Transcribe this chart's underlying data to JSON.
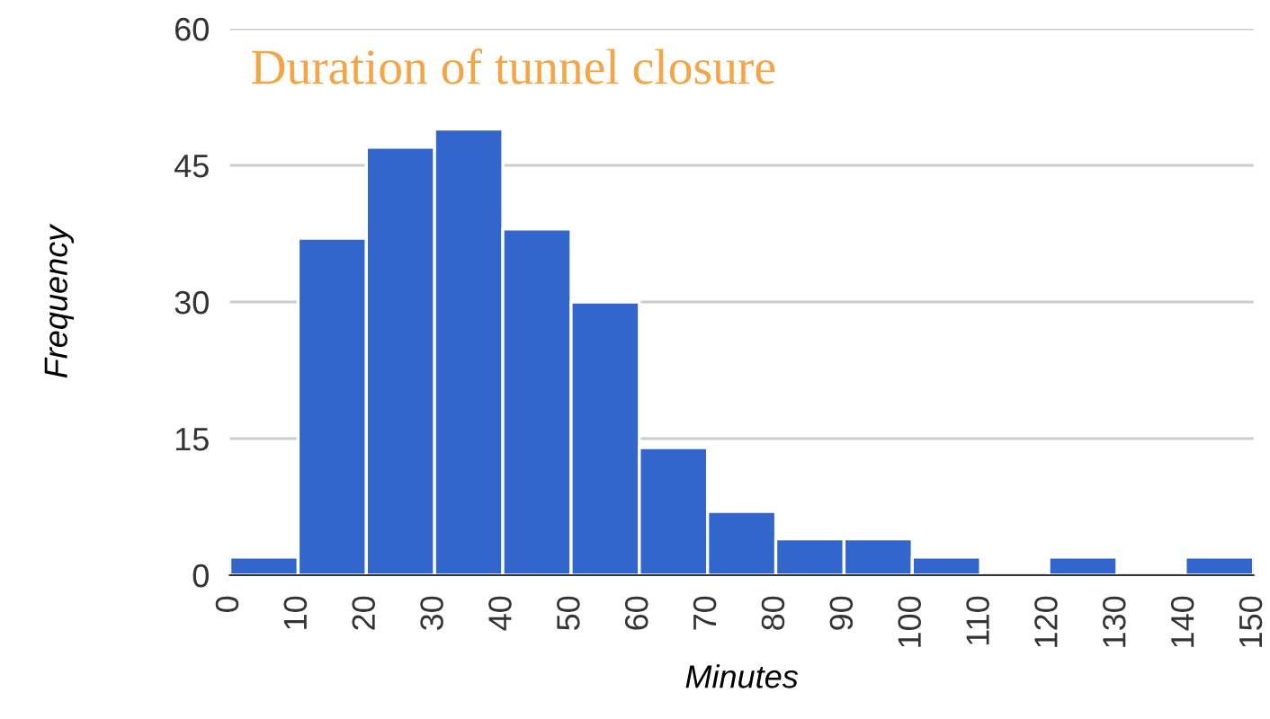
{
  "chart_data": {
    "type": "histogram",
    "title": "Duration of tunnel closure",
    "xlabel": "Minutes",
    "ylabel": "Frequency",
    "bins": [
      0,
      10,
      20,
      30,
      40,
      50,
      60,
      70,
      80,
      90,
      100,
      110,
      120,
      130,
      140,
      150
    ],
    "values": [
      2,
      37,
      47,
      49,
      38,
      30,
      14,
      7,
      4,
      4,
      2,
      0,
      2,
      0,
      2
    ],
    "color": "#3366cc",
    "xlim": [
      0,
      150
    ],
    "xticks": [
      0,
      10,
      20,
      30,
      40,
      50,
      60,
      70,
      80,
      90,
      100,
      110,
      120,
      130,
      140,
      150
    ],
    "ylim": [
      0,
      60
    ],
    "yticks": [
      0,
      15,
      30,
      45,
      60
    ],
    "grid": "y"
  }
}
